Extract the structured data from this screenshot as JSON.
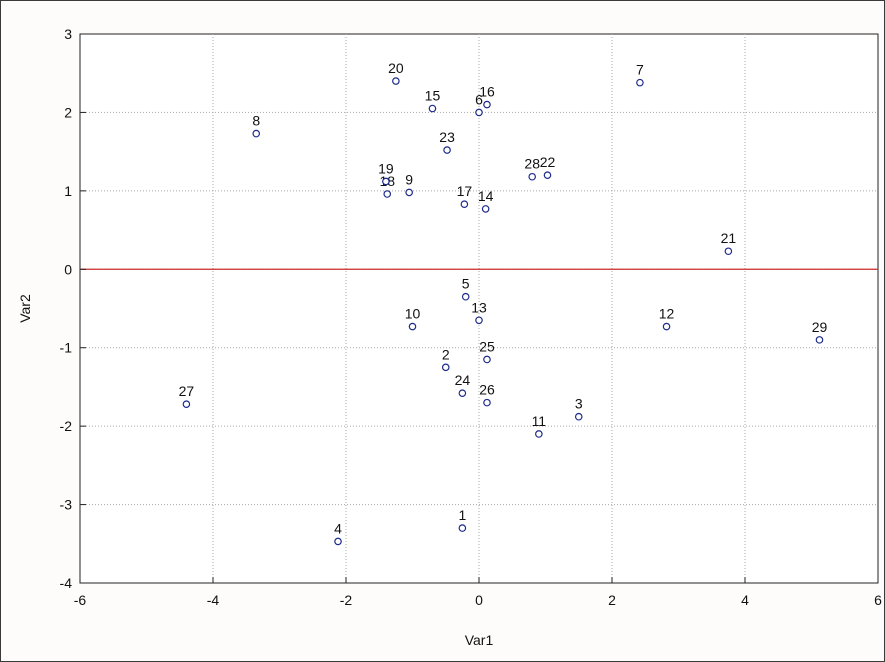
{
  "chart_data": {
    "type": "scatter",
    "title": "",
    "xlabel": "Var1",
    "ylabel": "Var2",
    "xlim": [
      -6,
      6
    ],
    "ylim": [
      -4,
      3
    ],
    "x_ticks": [
      "-6",
      "-4",
      "-2",
      "0",
      "2",
      "4",
      "6"
    ],
    "y_ticks": [
      "3",
      "2",
      "1",
      "0",
      "-1",
      "-2",
      "-3",
      "-4"
    ],
    "grid": true,
    "reference_line": {
      "y": 0,
      "color": "#cc2b2b"
    },
    "marker_color": "#1d2b8c",
    "points": [
      {
        "label": "1",
        "x": -0.25,
        "y": -3.3
      },
      {
        "label": "2",
        "x": -0.5,
        "y": -1.25
      },
      {
        "label": "3",
        "x": 1.5,
        "y": -1.88
      },
      {
        "label": "4",
        "x": -2.12,
        "y": -3.47
      },
      {
        "label": "5",
        "x": -0.2,
        "y": -0.35
      },
      {
        "label": "6",
        "x": 0.0,
        "y": 2.0
      },
      {
        "label": "7",
        "x": 2.42,
        "y": 2.38
      },
      {
        "label": "8",
        "x": -3.35,
        "y": 1.73
      },
      {
        "label": "9",
        "x": -1.05,
        "y": 0.98
      },
      {
        "label": "10",
        "x": -1.0,
        "y": -0.73
      },
      {
        "label": "11",
        "x": 0.9,
        "y": -2.1
      },
      {
        "label": "12",
        "x": 2.82,
        "y": -0.73
      },
      {
        "label": "13",
        "x": 0.0,
        "y": -0.65
      },
      {
        "label": "14",
        "x": 0.1,
        "y": 0.77
      },
      {
        "label": "15",
        "x": -0.7,
        "y": 2.05
      },
      {
        "label": "16",
        "x": 0.12,
        "y": 2.1
      },
      {
        "label": "17",
        "x": -0.22,
        "y": 0.83
      },
      {
        "label": "18",
        "x": -1.38,
        "y": 0.96
      },
      {
        "label": "19",
        "x": -1.4,
        "y": 1.12
      },
      {
        "label": "20",
        "x": -1.25,
        "y": 2.4
      },
      {
        "label": "21",
        "x": 3.75,
        "y": 0.23
      },
      {
        "label": "22",
        "x": 1.03,
        "y": 1.2
      },
      {
        "label": "23",
        "x": -0.48,
        "y": 1.52
      },
      {
        "label": "24",
        "x": -0.25,
        "y": -1.58
      },
      {
        "label": "25",
        "x": 0.12,
        "y": -1.15
      },
      {
        "label": "26",
        "x": 0.12,
        "y": -1.7
      },
      {
        "label": "27",
        "x": -4.4,
        "y": -1.72
      },
      {
        "label": "28",
        "x": 0.8,
        "y": 1.18
      },
      {
        "label": "29",
        "x": 5.12,
        "y": -0.9
      }
    ]
  }
}
